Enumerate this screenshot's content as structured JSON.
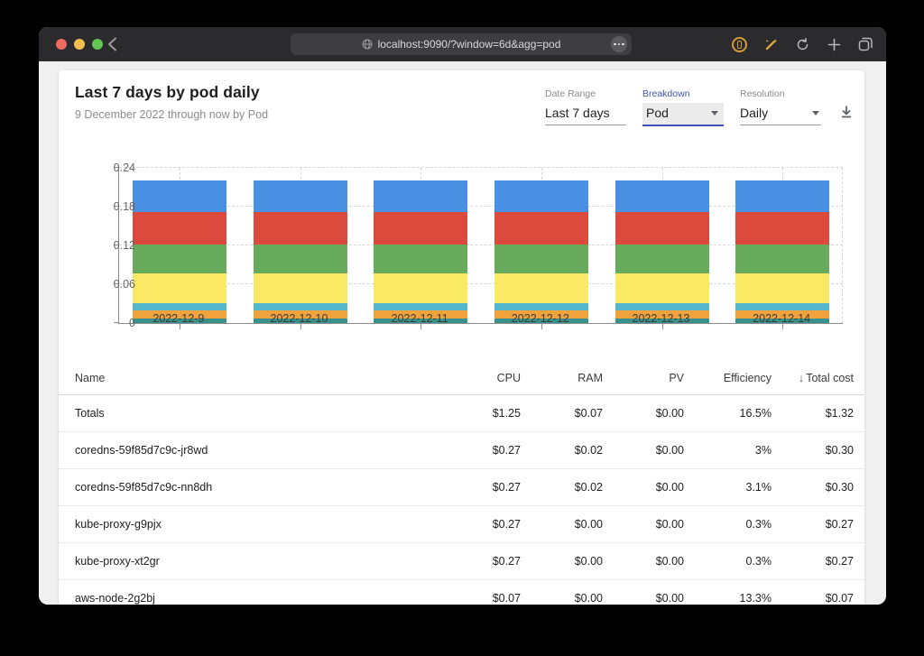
{
  "browser": {
    "url": "localhost:9090/?window=6d&agg=pod",
    "traffic_lights": [
      "#ed6a5f",
      "#f5bf4f",
      "#61c554"
    ]
  },
  "header": {
    "title": "Last 7 days by pod daily",
    "subtitle": "9 December 2022 through now by Pod"
  },
  "controls": {
    "date_range": {
      "label": "Date Range",
      "value": "Last 7 days"
    },
    "breakdown": {
      "label": "Breakdown",
      "value": "Pod",
      "accent": "#3f51b5"
    },
    "resolution": {
      "label": "Resolution",
      "value": "Daily"
    }
  },
  "chart_data": {
    "type": "bar",
    "stacked": true,
    "title": "",
    "xlabel": "",
    "ylabel": "",
    "categories": [
      "2022-12-9",
      "2022-12-10",
      "2022-12-11",
      "2022-12-12",
      "2022-12-13",
      "2022-12-14"
    ],
    "series": [
      {
        "name": "segment-teal",
        "color": "#38918a",
        "values": [
          0.007,
          0.007,
          0.007,
          0.007,
          0.007,
          0.007
        ]
      },
      {
        "name": "segment-orange",
        "color": "#f0a23c",
        "values": [
          0.012,
          0.012,
          0.012,
          0.012,
          0.012,
          0.012
        ]
      },
      {
        "name": "segment-cyan",
        "color": "#54b7cb",
        "values": [
          0.012,
          0.012,
          0.012,
          0.012,
          0.012,
          0.012
        ]
      },
      {
        "name": "segment-yellow",
        "color": "#fae964",
        "values": [
          0.046,
          0.046,
          0.046,
          0.046,
          0.046,
          0.046
        ]
      },
      {
        "name": "segment-green",
        "color": "#68ab5c",
        "values": [
          0.044,
          0.044,
          0.044,
          0.044,
          0.044,
          0.044
        ]
      },
      {
        "name": "segment-red",
        "color": "#dc4a3d",
        "values": [
          0.051,
          0.051,
          0.051,
          0.051,
          0.051,
          0.051
        ]
      },
      {
        "name": "segment-blue",
        "color": "#4a90e2",
        "values": [
          0.049,
          0.049,
          0.049,
          0.049,
          0.049,
          0.049
        ]
      }
    ],
    "ylim": [
      0,
      0.24
    ],
    "yticks": [
      0,
      0.06,
      0.12,
      0.18,
      0.24
    ],
    "grid": "dashed",
    "legend": "none"
  },
  "table": {
    "columns": [
      "Name",
      "CPU",
      "RAM",
      "PV",
      "Efficiency",
      "Total cost"
    ],
    "sorted_by": "Total cost",
    "sort_direction": "desc",
    "sort_arrow": "↓",
    "rows": [
      {
        "name": "Totals",
        "cpu": "$1.25",
        "ram": "$0.07",
        "pv": "$0.00",
        "efficiency": "16.5%",
        "total": "$1.32"
      },
      {
        "name": "coredns-59f85d7c9c-jr8wd",
        "cpu": "$0.27",
        "ram": "$0.02",
        "pv": "$0.00",
        "efficiency": "3%",
        "total": "$0.30"
      },
      {
        "name": "coredns-59f85d7c9c-nn8dh",
        "cpu": "$0.27",
        "ram": "$0.02",
        "pv": "$0.00",
        "efficiency": "3.1%",
        "total": "$0.30"
      },
      {
        "name": "kube-proxy-g9pjx",
        "cpu": "$0.27",
        "ram": "$0.00",
        "pv": "$0.00",
        "efficiency": "0.3%",
        "total": "$0.27"
      },
      {
        "name": "kube-proxy-xt2gr",
        "cpu": "$0.27",
        "ram": "$0.00",
        "pv": "$0.00",
        "efficiency": "0.3%",
        "total": "$0.27"
      },
      {
        "name": "aws-node-2g2bj",
        "cpu": "$0.07",
        "ram": "$0.00",
        "pv": "$0.00",
        "efficiency": "13.3%",
        "total": "$0.07"
      }
    ]
  }
}
